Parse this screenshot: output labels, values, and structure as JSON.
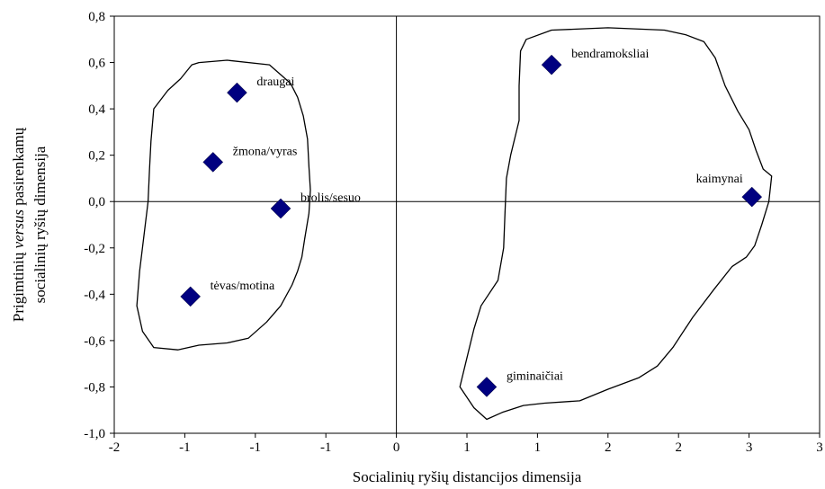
{
  "chart_data": {
    "type": "scatter",
    "xlabel": "Socialinių ryšių distancijos dimensija",
    "ylabel": {
      "line1_pre": "Prigimtinių ",
      "line1_em": "versus",
      "line1_post": " pasirenkamų",
      "line2": "socialinių ryšių dimensija"
    },
    "xlim": [
      -2,
      3
    ],
    "ylim": [
      -1.0,
      0.8
    ],
    "x_ticks": [
      {
        "value": -2,
        "label": "-2"
      },
      {
        "value": -1.5,
        "label": "-1"
      },
      {
        "value": -1,
        "label": "-1"
      },
      {
        "value": -0.5,
        "label": "-1"
      },
      {
        "value": 0,
        "label": "0"
      },
      {
        "value": 0.5,
        "label": "1"
      },
      {
        "value": 1,
        "label": "1"
      },
      {
        "value": 1.5,
        "label": "2"
      },
      {
        "value": 2,
        "label": "2"
      },
      {
        "value": 2.5,
        "label": "3"
      },
      {
        "value": 3,
        "label": "3"
      }
    ],
    "y_ticks": [
      {
        "value": 0.8,
        "label": "0,8"
      },
      {
        "value": 0.6,
        "label": "0,6"
      },
      {
        "value": 0.4,
        "label": "0,4"
      },
      {
        "value": 0.2,
        "label": "0,2"
      },
      {
        "value": 0.0,
        "label": "0,0"
      },
      {
        "value": -0.2,
        "label": "-0,2"
      },
      {
        "value": -0.4,
        "label": "-0,4"
      },
      {
        "value": -0.6,
        "label": "-0,6"
      },
      {
        "value": -0.8,
        "label": "-0,8"
      },
      {
        "value": -1.0,
        "label": "-1,0"
      }
    ],
    "grid": false,
    "marker": "diamond",
    "marker_color": "#000080",
    "points": [
      {
        "label": "draugai",
        "x": -1.13,
        "y": 0.47
      },
      {
        "label": "žmona/vyras",
        "x": -1.3,
        "y": 0.17
      },
      {
        "label": "brolis/sesuo",
        "x": -0.82,
        "y": -0.03
      },
      {
        "label": "tėvas/motina",
        "x": -1.46,
        "y": -0.41
      },
      {
        "label": "bendramoksliai",
        "x": 1.1,
        "y": 0.59
      },
      {
        "label": "kaimynai",
        "x": 2.52,
        "y": 0.02
      },
      {
        "label": "giminaičiai",
        "x": 0.64,
        "y": -0.8
      }
    ],
    "clusters": [
      {
        "points": [
          [
            -1.4,
            0.6
          ],
          [
            -1.2,
            0.61
          ],
          [
            -0.9,
            0.59
          ],
          [
            -0.75,
            0.51
          ],
          [
            -0.7,
            0.45
          ],
          [
            -0.66,
            0.37
          ],
          [
            -0.63,
            0.27
          ],
          [
            -0.62,
            0.15
          ],
          [
            -0.61,
            0.05
          ],
          [
            -0.62,
            -0.05
          ],
          [
            -0.65,
            -0.16
          ],
          [
            -0.67,
            -0.24
          ],
          [
            -0.7,
            -0.3
          ],
          [
            -0.74,
            -0.36
          ],
          [
            -0.82,
            -0.45
          ],
          [
            -0.92,
            -0.52
          ],
          [
            -1.05,
            -0.59
          ],
          [
            -1.2,
            -0.61
          ],
          [
            -1.4,
            -0.62
          ],
          [
            -1.55,
            -0.64
          ],
          [
            -1.72,
            -0.63
          ],
          [
            -1.8,
            -0.56
          ],
          [
            -1.84,
            -0.45
          ],
          [
            -1.82,
            -0.3
          ],
          [
            -1.79,
            -0.15
          ],
          [
            -1.76,
            0.0
          ],
          [
            -1.75,
            0.14
          ],
          [
            -1.74,
            0.26
          ],
          [
            -1.72,
            0.4
          ],
          [
            -1.62,
            0.48
          ],
          [
            -1.53,
            0.53
          ],
          [
            -1.45,
            0.59
          ]
        ]
      },
      {
        "points": [
          [
            0.92,
            0.7
          ],
          [
            1.1,
            0.74
          ],
          [
            1.5,
            0.75
          ],
          [
            1.9,
            0.74
          ],
          [
            2.05,
            0.72
          ],
          [
            2.18,
            0.69
          ],
          [
            2.26,
            0.62
          ],
          [
            2.33,
            0.5
          ],
          [
            2.42,
            0.39
          ],
          [
            2.5,
            0.31
          ],
          [
            2.55,
            0.22
          ],
          [
            2.6,
            0.14
          ],
          [
            2.66,
            0.11
          ],
          [
            2.64,
            0.0
          ],
          [
            2.59,
            -0.1
          ],
          [
            2.54,
            -0.19
          ],
          [
            2.48,
            -0.24
          ],
          [
            2.38,
            -0.28
          ],
          [
            2.25,
            -0.38
          ],
          [
            2.1,
            -0.5
          ],
          [
            1.96,
            -0.63
          ],
          [
            1.85,
            -0.71
          ],
          [
            1.72,
            -0.76
          ],
          [
            1.5,
            -0.81
          ],
          [
            1.3,
            -0.86
          ],
          [
            1.05,
            -0.87
          ],
          [
            0.9,
            -0.88
          ],
          [
            0.75,
            -0.91
          ],
          [
            0.64,
            -0.94
          ],
          [
            0.55,
            -0.89
          ],
          [
            0.45,
            -0.8
          ],
          [
            0.49,
            -0.7
          ],
          [
            0.55,
            -0.55
          ],
          [
            0.6,
            -0.45
          ],
          [
            0.72,
            -0.34
          ],
          [
            0.76,
            -0.2
          ],
          [
            0.77,
            -0.05
          ],
          [
            0.78,
            0.1
          ],
          [
            0.81,
            0.2
          ],
          [
            0.87,
            0.35
          ],
          [
            0.87,
            0.5
          ],
          [
            0.88,
            0.65
          ]
        ]
      }
    ]
  }
}
